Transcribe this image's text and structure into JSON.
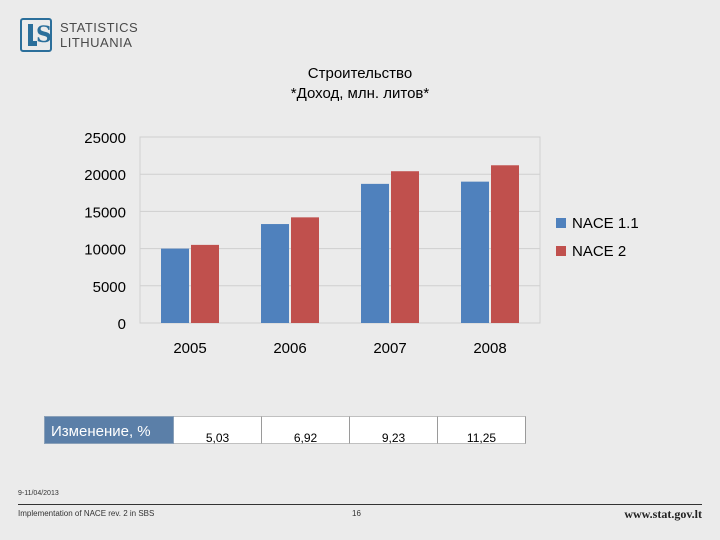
{
  "logo": {
    "line1": "STATISTICS",
    "line2": "LITHUANIA"
  },
  "chart_data": {
    "type": "bar",
    "title": "Строительство",
    "subtitle": "*Доход, млн. литов*",
    "categories": [
      "2005",
      "2006",
      "2007",
      "2008"
    ],
    "series": [
      {
        "name": "NACE 1.1",
        "values": [
          10000,
          13300,
          18700,
          19000
        ],
        "color": "#4f81bd"
      },
      {
        "name": "NACE 2",
        "values": [
          10500,
          14200,
          20400,
          21200
        ],
        "color": "#c0504d"
      }
    ],
    "ylim": [
      0,
      25000
    ],
    "yticks": [
      "0",
      "5000",
      "10000",
      "15000",
      "20000",
      "25000"
    ],
    "grid": true,
    "legend": "right"
  },
  "change_table": {
    "label": "Изменение, %",
    "values": [
      "5,03",
      "6,92",
      "9,23",
      "11,25"
    ]
  },
  "footer": {
    "date": "9-11/04/2013",
    "left": "Implementation of NACE rev. 2 in SBS",
    "page": "16",
    "url": "www.stat.gov.lt"
  }
}
